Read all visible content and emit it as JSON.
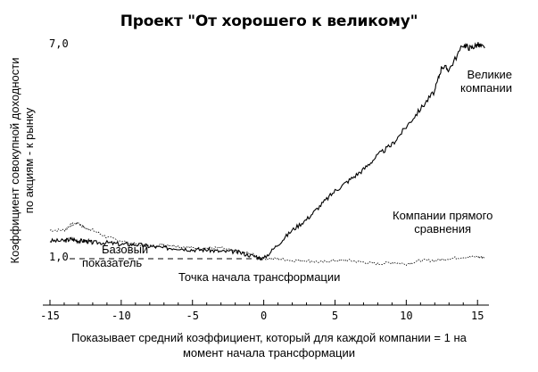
{
  "chart_data": {
    "type": "line",
    "title": "Проект \"От хорошего к великому\"",
    "ylabel": [
      "Коэффициент совокупной доходности",
      "по акциям - к рынку"
    ],
    "xlabel": [
      "Показывает средний коэффициент, который для каждой компании = 1 на",
      "момент начала трансформации"
    ],
    "x_ticks": [
      -15,
      -10,
      -5,
      0,
      5,
      10,
      15
    ],
    "xlim": [
      -15.5,
      15.8
    ],
    "ylim": [
      0.6,
      7.5
    ],
    "y_ticks_labels": [
      "7,0",
      "1,0"
    ],
    "baseline": 1.0,
    "series": [
      {
        "name": "Великие компании",
        "x": [
          -15,
          -14,
          -13.5,
          -13,
          -12.5,
          -12,
          -11,
          -10,
          -9,
          -8,
          -7,
          -6,
          -5,
          -4,
          -3,
          -2,
          -1,
          0,
          1,
          2,
          3,
          4,
          5,
          6,
          7,
          8,
          9,
          10,
          11,
          12,
          12.5,
          13,
          14,
          14.5,
          15,
          15.5
        ],
        "y": [
          1.5,
          1.5,
          1.55,
          1.5,
          1.5,
          1.45,
          1.45,
          1.4,
          1.4,
          1.35,
          1.3,
          1.3,
          1.25,
          1.25,
          1.2,
          1.2,
          1.1,
          1.0,
          1.4,
          1.8,
          2.1,
          2.5,
          2.9,
          3.2,
          3.5,
          3.9,
          4.2,
          4.7,
          5.2,
          5.7,
          6.4,
          6.3,
          7.0,
          6.9,
          7.0,
          6.9
        ]
      },
      {
        "name": "Компании прямого сравнения",
        "x": [
          -15,
          -14,
          -13.5,
          -13,
          -12.5,
          -12,
          -11,
          -10,
          -9,
          -8,
          -7,
          -6,
          -5,
          -4,
          -3,
          -2,
          -1,
          0,
          1,
          2,
          3,
          4,
          5,
          6,
          7,
          8,
          9,
          10,
          11,
          12,
          13,
          14,
          15,
          15.5
        ],
        "y": [
          1.8,
          1.8,
          1.95,
          2.0,
          1.85,
          1.8,
          1.6,
          1.5,
          1.4,
          1.35,
          1.4,
          1.35,
          1.3,
          1.3,
          1.3,
          1.2,
          1.15,
          1.0,
          1.0,
          0.95,
          0.95,
          0.9,
          0.95,
          0.95,
          0.9,
          0.85,
          0.9,
          0.85,
          0.95,
          0.95,
          1.0,
          1.05,
          1.05,
          1.05
        ]
      }
    ],
    "annotations": {
      "great": [
        "Великие",
        "компании"
      ],
      "comparison": [
        "Компании прямого",
        "сравнения"
      ],
      "baseline": [
        "Базовый",
        "показатель"
      ],
      "transition": "Точка начала трансформации"
    }
  }
}
